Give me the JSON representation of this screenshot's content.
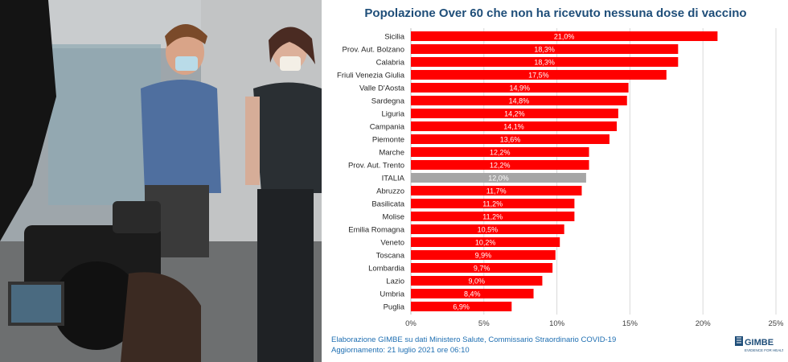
{
  "photo": {
    "description_icon": "vaccination-photo"
  },
  "chart_data": {
    "type": "bar",
    "orientation": "horizontal",
    "title": "Popolazione Over 60 che non ha ricevuto nessuna dose di vaccino",
    "categories": [
      "Sicilia",
      "Prov. Aut. Bolzano",
      "Calabria",
      "Friuli Venezia Giulia",
      "Valle D'Aosta",
      "Sardegna",
      "Liguria",
      "Campania",
      "Piemonte",
      "Marche",
      "Prov. Aut. Trento",
      "ITALIA",
      "Abruzzo",
      "Basilicata",
      "Molise",
      "Emilia Romagna",
      "Veneto",
      "Toscana",
      "Lombardia",
      "Lazio",
      "Umbria",
      "Puglia"
    ],
    "values": [
      21.0,
      18.3,
      18.3,
      17.5,
      14.9,
      14.8,
      14.2,
      14.1,
      13.6,
      12.2,
      12.2,
      12.0,
      11.7,
      11.2,
      11.2,
      10.5,
      10.2,
      9.9,
      9.7,
      9.0,
      8.4,
      6.9
    ],
    "value_labels": [
      "21,0%",
      "18,3%",
      "18,3%",
      "17,5%",
      "14,9%",
      "14,8%",
      "14,2%",
      "14,1%",
      "13,6%",
      "12,2%",
      "12,2%",
      "12,0%",
      "11,7%",
      "11,2%",
      "11,2%",
      "10,5%",
      "10,2%",
      "9,9%",
      "9,7%",
      "9,0%",
      "8,4%",
      "6,9%"
    ],
    "highlight_category": "ITALIA",
    "xlim": [
      0,
      25
    ],
    "xticks": [
      0,
      5,
      10,
      15,
      20,
      25
    ],
    "xtick_labels": [
      "0%",
      "5%",
      "10%",
      "15%",
      "20%",
      "25%"
    ],
    "grid": true,
    "colors": {
      "bar": "#ff0000",
      "highlight": "#a6a6a6",
      "grid": "#d9d9d9",
      "title": "#1f4e79"
    }
  },
  "footer": {
    "line1": "Elaborazione GIMBE su dati Ministero Salute, Commissario Straordinario COVID-19",
    "line2": "Aggiornamento: 21 luglio 2021 ore 06:10"
  },
  "logo": {
    "name": "GIMBE",
    "tagline": "EVIDENCE FOR HEALTH"
  }
}
